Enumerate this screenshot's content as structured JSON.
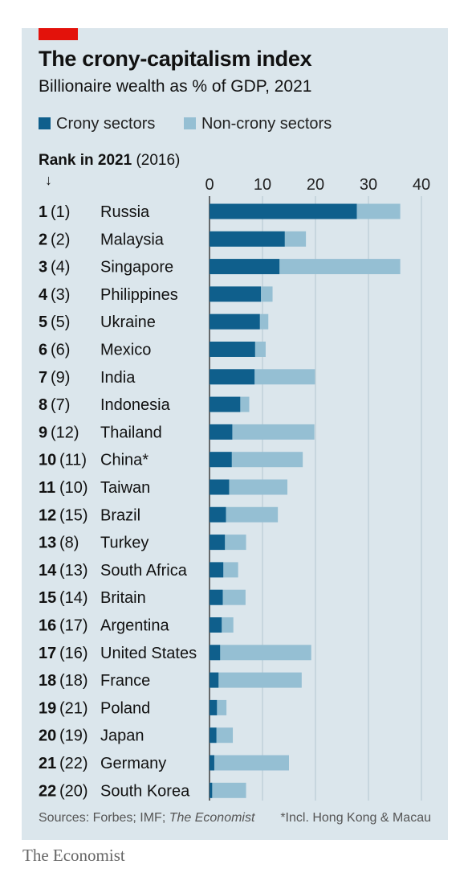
{
  "header": {
    "title": "The crony-capitalism index",
    "subtitle": "Billionaire wealth as % of GDP, 2021"
  },
  "legend": {
    "crony": "Crony sectors",
    "noncrony": "Non-crony sectors"
  },
  "rank_header": {
    "bold": "Rank in 2021",
    "paren": "(2016)",
    "arrow": "↓"
  },
  "colors": {
    "crony": "#0f5f8c",
    "noncrony": "#95bfd3",
    "background": "#dbe6ec",
    "accent": "#e3120b",
    "gridline": "#b3c6d1"
  },
  "chart_data": {
    "type": "bar",
    "orientation": "horizontal",
    "stacked": true,
    "title": "The crony-capitalism index",
    "subtitle": "Billionaire wealth as % of GDP, 2021",
    "xlim": [
      0,
      40
    ],
    "xticks": [
      0,
      10,
      20,
      30,
      40
    ],
    "grid": true,
    "legend_placement": "top",
    "rows": [
      {
        "rank": "1",
        "prev": "(1)",
        "country": "Russia",
        "crony": 27.8,
        "total": 36.0
      },
      {
        "rank": "2",
        "prev": "(2)",
        "country": "Malaysia",
        "crony": 14.2,
        "total": 18.2
      },
      {
        "rank": "3",
        "prev": "(4)",
        "country": "Singapore",
        "crony": 13.2,
        "total": 36.0
      },
      {
        "rank": "4",
        "prev": "(3)",
        "country": "Philippines",
        "crony": 9.7,
        "total": 11.9
      },
      {
        "rank": "5",
        "prev": "(5)",
        "country": "Ukraine",
        "crony": 9.5,
        "total": 11.1
      },
      {
        "rank": "6",
        "prev": "(6)",
        "country": "Mexico",
        "crony": 8.6,
        "total": 10.6
      },
      {
        "rank": "7",
        "prev": "(9)",
        "country": "India",
        "crony": 8.5,
        "total": 19.9
      },
      {
        "rank": "8",
        "prev": "(7)",
        "country": "Indonesia",
        "crony": 5.8,
        "total": 7.5
      },
      {
        "rank": "9",
        "prev": "(12)",
        "country": "Thailand",
        "crony": 4.3,
        "total": 19.8
      },
      {
        "rank": "10",
        "prev": "(11)",
        "country": "China*",
        "crony": 4.2,
        "total": 17.6
      },
      {
        "rank": "11",
        "prev": "(10)",
        "country": "Taiwan",
        "crony": 3.7,
        "total": 14.7
      },
      {
        "rank": "12",
        "prev": "(15)",
        "country": "Brazil",
        "crony": 3.1,
        "total": 12.9
      },
      {
        "rank": "13",
        "prev": "(8)",
        "country": "Turkey",
        "crony": 2.9,
        "total": 6.9
      },
      {
        "rank": "14",
        "prev": "(13)",
        "country": "South Africa",
        "crony": 2.6,
        "total": 5.4
      },
      {
        "rank": "15",
        "prev": "(14)",
        "country": "Britain",
        "crony": 2.5,
        "total": 6.8
      },
      {
        "rank": "16",
        "prev": "(17)",
        "country": "Argentina",
        "crony": 2.3,
        "total": 4.5
      },
      {
        "rank": "17",
        "prev": "(16)",
        "country": "United States",
        "crony": 2.0,
        "total": 19.2
      },
      {
        "rank": "18",
        "prev": "(18)",
        "country": "France",
        "crony": 1.7,
        "total": 17.4
      },
      {
        "rank": "19",
        "prev": "(21)",
        "country": "Poland",
        "crony": 1.4,
        "total": 3.2
      },
      {
        "rank": "20",
        "prev": "(19)",
        "country": "Japan",
        "crony": 1.3,
        "total": 4.4
      },
      {
        "rank": "21",
        "prev": "(22)",
        "country": "Germany",
        "crony": 0.9,
        "total": 15.0
      },
      {
        "rank": "22",
        "prev": "(20)",
        "country": "South Korea",
        "crony": 0.5,
        "total": 6.9
      }
    ]
  },
  "footer": {
    "sources_prefix": "Sources: Forbes; IMF; ",
    "sources_italic": "The Economist",
    "footnote": "*Incl. Hong Kong & Macau",
    "brand": "The Economist"
  }
}
